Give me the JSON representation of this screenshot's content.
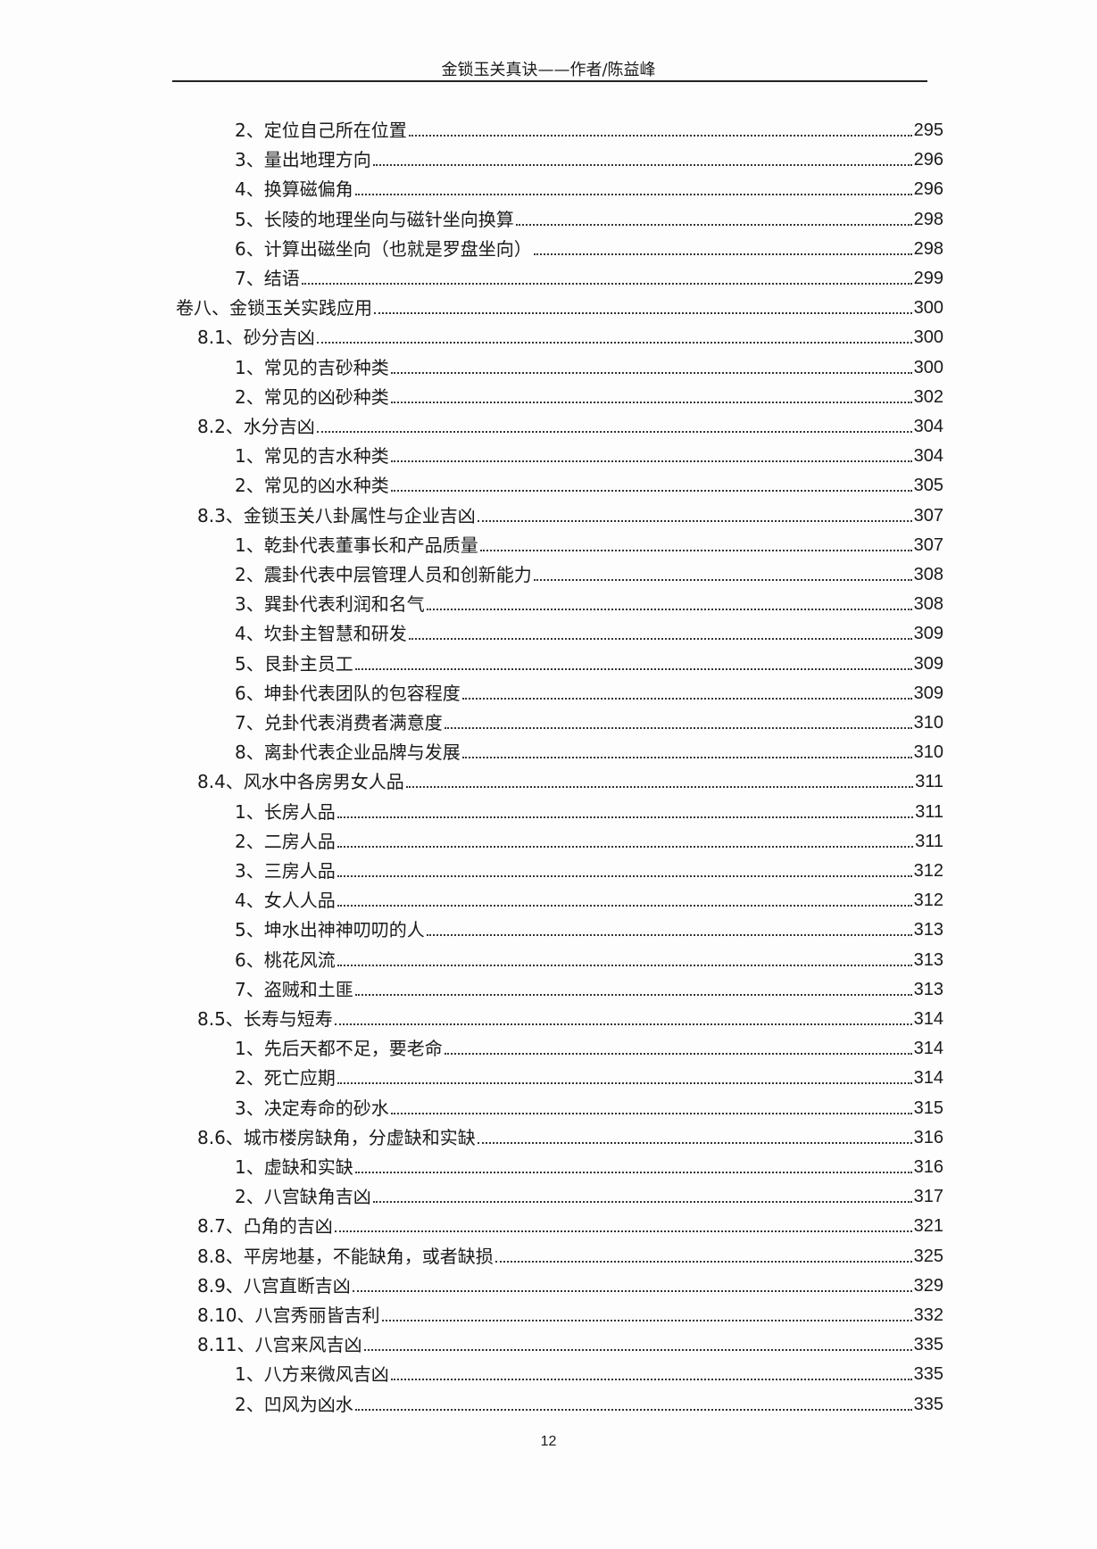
{
  "header": {
    "title": "金锁玉关真诀——作者/陈益峰"
  },
  "toc": [
    {
      "level": 2,
      "label": "2、定位自己所在位置",
      "page": "295"
    },
    {
      "level": 2,
      "label": "3、量出地理方向",
      "page": "296"
    },
    {
      "level": 2,
      "label": "4、换算磁偏角",
      "page": "296"
    },
    {
      "level": 2,
      "label": "5、长陵的地理坐向与磁针坐向换算",
      "page": "298"
    },
    {
      "level": 2,
      "label": "6、计算出磁坐向（也就是罗盘坐向）",
      "page": "298"
    },
    {
      "level": 2,
      "label": "7、结语",
      "page": "299"
    },
    {
      "level": 0,
      "label": "卷八、金锁玉关实践应用",
      "page": "300"
    },
    {
      "level": 1,
      "label": "8.1、砂分吉凶",
      "page": "300"
    },
    {
      "level": 2,
      "label": "1、常见的吉砂种类",
      "page": "300"
    },
    {
      "level": 2,
      "label": "2、常见的凶砂种类",
      "page": "302"
    },
    {
      "level": 1,
      "label": "8.2、水分吉凶",
      "page": "304"
    },
    {
      "level": 2,
      "label": "1、常见的吉水种类",
      "page": "304"
    },
    {
      "level": 2,
      "label": "2、常见的凶水种类",
      "page": "305"
    },
    {
      "level": 1,
      "label": "8.3、金锁玉关八卦属性与企业吉凶",
      "page": "307"
    },
    {
      "level": 2,
      "label": "1、乾卦代表董事长和产品质量",
      "page": "307"
    },
    {
      "level": 2,
      "label": "2、震卦代表中层管理人员和创新能力",
      "page": "308"
    },
    {
      "level": 2,
      "label": "3、巽卦代表利润和名气",
      "page": "308"
    },
    {
      "level": 2,
      "label": "4、坎卦主智慧和研发",
      "page": "309"
    },
    {
      "level": 2,
      "label": "5、艮卦主员工",
      "page": "309"
    },
    {
      "level": 2,
      "label": "6、坤卦代表团队的包容程度",
      "page": "309"
    },
    {
      "level": 2,
      "label": "7、兑卦代表消费者满意度",
      "page": "310"
    },
    {
      "level": 2,
      "label": "8、离卦代表企业品牌与发展",
      "page": "310"
    },
    {
      "level": 1,
      "label": "8.4、风水中各房男女人品",
      "page": "311"
    },
    {
      "level": 2,
      "label": "1、长房人品",
      "page": "311"
    },
    {
      "level": 2,
      "label": "2、二房人品",
      "page": "311"
    },
    {
      "level": 2,
      "label": "3、三房人品",
      "page": "312"
    },
    {
      "level": 2,
      "label": "4、女人人品",
      "page": "312"
    },
    {
      "level": 2,
      "label": "5、坤水出神神叨叨的人",
      "page": "313"
    },
    {
      "level": 2,
      "label": "6、桃花风流",
      "page": "313"
    },
    {
      "level": 2,
      "label": "7、盗贼和土匪",
      "page": "313"
    },
    {
      "level": 1,
      "label": "8.5、长寿与短寿",
      "page": "314"
    },
    {
      "level": 2,
      "label": "1、先后天都不足，要老命",
      "page": "314"
    },
    {
      "level": 2,
      "label": "2、死亡应期",
      "page": "314"
    },
    {
      "level": 2,
      "label": "3、决定寿命的砂水",
      "page": "315"
    },
    {
      "level": 1,
      "label": "8.6、城市楼房缺角，分虚缺和实缺",
      "page": "316"
    },
    {
      "level": 2,
      "label": "1、虚缺和实缺",
      "page": "316"
    },
    {
      "level": 2,
      "label": "2、八宫缺角吉凶",
      "page": "317"
    },
    {
      "level": 1,
      "label": "8.7、凸角的吉凶",
      "page": "321"
    },
    {
      "level": 1,
      "label": "8.8、平房地基，不能缺角，或者缺损",
      "page": "325"
    },
    {
      "level": 1,
      "label": "8.9、八宫直断吉凶",
      "page": "329"
    },
    {
      "level": 1,
      "label": "8.10、八宫秀丽皆吉利",
      "page": "332"
    },
    {
      "level": 1,
      "label": "8.11、八宫来风吉凶",
      "page": "335"
    },
    {
      "level": 2,
      "label": "1、八方来微风吉凶",
      "page": "335"
    },
    {
      "level": 2,
      "label": "2、凹风为凶水",
      "page": "335"
    }
  ],
  "footer": {
    "page_number": "12"
  }
}
